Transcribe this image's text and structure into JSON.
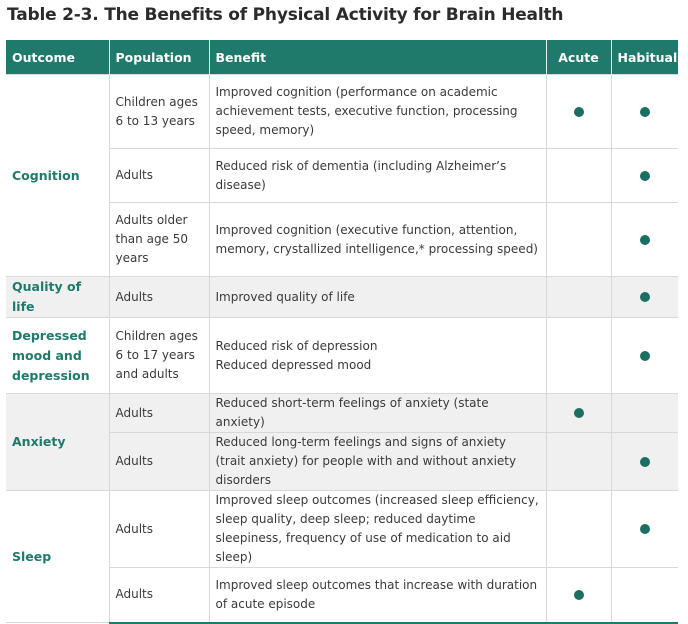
{
  "title": "Table 2-3. The Benefits of Physical Activity for Brain Health",
  "header": {
    "outcome": "Outcome",
    "population": "Population",
    "benefit": "Benefit",
    "acute": "Acute",
    "habitual": "Habitual"
  },
  "colors": {
    "header_bg": "#1f7a6c",
    "outcome_text": "#1f7a6c",
    "dot": "#1c6e62",
    "shade": "#f0f0f0"
  },
  "outcomes": [
    {
      "label": "Cognition",
      "rows": [
        {
          "population": "Children ages 6 to 13 years",
          "benefit": "Improved cognition (performance on academic achievement tests, executive function, processing speed, memory)",
          "acute": true,
          "habitual": true
        },
        {
          "population": "Adults",
          "benefit": "Reduced risk of dementia (including Alzheimer’s disease)",
          "acute": false,
          "habitual": true
        },
        {
          "population": "Adults older than age 50 years",
          "benefit": "Improved cognition (executive function, attention, memory, crystallized intelligence,* processing speed)",
          "acute": false,
          "habitual": true
        }
      ]
    },
    {
      "label": "Quality of life",
      "rows": [
        {
          "population": "Adults",
          "benefit": "Improved quality of life",
          "acute": false,
          "habitual": true
        }
      ]
    },
    {
      "label": "Depressed mood and depression",
      "rows": [
        {
          "population": "Children ages 6 to 17 years and adults",
          "benefit": "Reduced risk of depression",
          "benefit2": "Reduced depressed mood",
          "acute": false,
          "habitual": true
        }
      ]
    },
    {
      "label": "Anxiety",
      "rows": [
        {
          "population": "Adults",
          "benefit": "Reduced short-term feelings of anxiety (state anxiety)",
          "acute": true,
          "habitual": false
        },
        {
          "population": "Adults",
          "benefit": "Reduced long-term feelings and signs of anxiety (trait anxiety) for people with and without anxiety disorders",
          "acute": false,
          "habitual": true
        }
      ]
    },
    {
      "label": "Sleep",
      "rows": [
        {
          "population": "Adults",
          "benefit": "Improved sleep outcomes (increased sleep efficiency, sleep quality, deep sleep; reduced daytime sleepiness, frequency of use of medication to aid sleep)",
          "acute": false,
          "habitual": true
        },
        {
          "population": "Adults",
          "benefit": "Improved sleep outcomes that increase with duration of acute episode",
          "acute": true,
          "habitual": false
        }
      ]
    }
  ]
}
